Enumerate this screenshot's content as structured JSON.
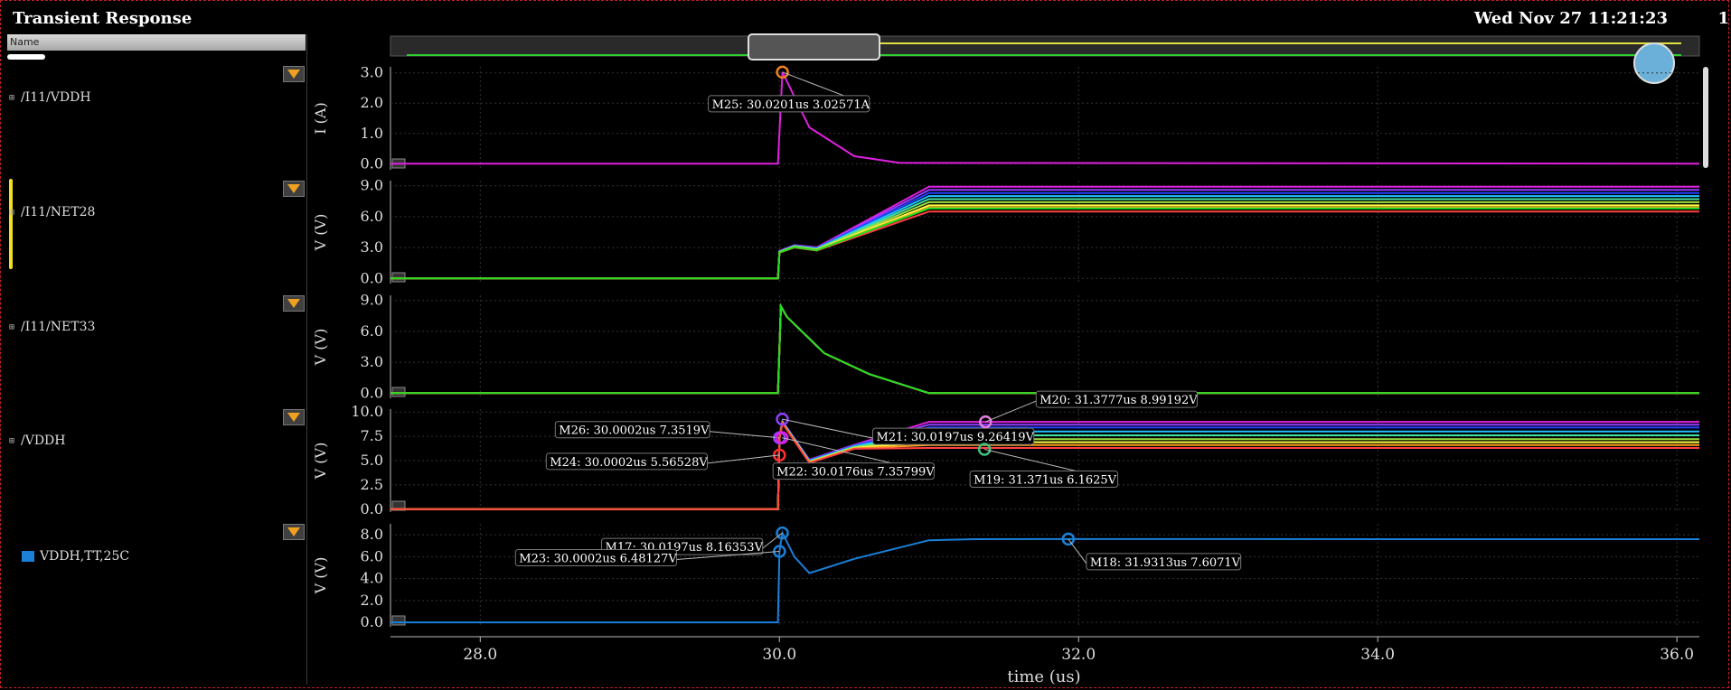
{
  "window": {
    "title": "Transient Response",
    "datetime": "Wed Nov 27 11:21:23",
    "corner_text": "1"
  },
  "left_panel": {
    "column_header": "Name",
    "signals": [
      {
        "label": "/I11/VDDH"
      },
      {
        "label": "/I11/NET28"
      },
      {
        "label": "/I11/NET33"
      },
      {
        "label": "/VDDH"
      }
    ],
    "legend_entry": {
      "label": "VDDH,TT,25C",
      "color": "#1a80d8"
    }
  },
  "chart_data": {
    "type": "line",
    "xlabel": "time (us)",
    "x_ticks": [
      "28.0",
      "30.0",
      "32.0",
      "34.0",
      "36.0"
    ],
    "xlim": [
      27.4,
      36.15
    ],
    "panels": [
      {
        "ylabel": "I (A)",
        "ylim": [
          -0.2,
          3.2
        ],
        "yticks": [
          "0.0",
          "1.0",
          "2.0",
          "3.0"
        ],
        "series": [
          {
            "color": "#e020e0",
            "x": [
              27.4,
              29.99,
              30.02,
              30.2,
              30.5,
              30.8,
              36.15
            ],
            "y": [
              0,
              0,
              3.02571,
              1.2,
              0.25,
              0.03,
              0
            ]
          }
        ]
      },
      {
        "ylabel": "V (V)",
        "ylim": [
          -0.5,
          9.5
        ],
        "yticks": [
          "0.0",
          "3.0",
          "6.0",
          "9.0"
        ],
        "families": {
          "x": [
            27.4,
            29.99,
            30.0,
            30.1,
            30.25,
            31.0,
            32.0,
            33.0,
            36.15
          ],
          "shape": [
            0,
            0,
            2.5,
            3.0,
            2.7,
            5.2,
            6.2,
            6.5,
            6.5
          ]
        },
        "series": [
          {
            "color": "#e020e0",
            "y_end": 8.9
          },
          {
            "color": "#9040ff",
            "y_end": 8.6
          },
          {
            "color": "#2040ff",
            "y_end": 8.3
          },
          {
            "color": "#20c0ff",
            "y_end": 8.0
          },
          {
            "color": "#40e0a0",
            "y_end": 7.7
          },
          {
            "color": "#a0e040",
            "y_end": 7.4
          },
          {
            "color": "#ffff40",
            "y_end": 7.1
          },
          {
            "color": "#ffa020",
            "y_end": 6.9
          },
          {
            "color": "#ff4040",
            "y_end": 6.5
          },
          {
            "color": "#20e020",
            "y_end": 6.8
          }
        ]
      },
      {
        "ylabel": "V (V)",
        "ylim": [
          -0.5,
          9.5
        ],
        "yticks": [
          "0.0",
          "3.0",
          "6.0",
          "9.0"
        ],
        "families": {
          "x": [
            27.4,
            29.99,
            30.01,
            30.05,
            30.3,
            30.6,
            31.0,
            31.5,
            32.0,
            36.15
          ],
          "shape": [
            0,
            0,
            8.5,
            7.5,
            4.0,
            2.0,
            1.0,
            0.3,
            0,
            0
          ]
        },
        "series": [
          {
            "color": "#e020e0",
            "y_end": 0
          },
          {
            "color": "#9040ff",
            "y_end": 0
          },
          {
            "color": "#20c0ff",
            "y_end": 0
          },
          {
            "color": "#40e0a0",
            "y_end": 0
          },
          {
            "color": "#ffff40",
            "y_end": 0
          },
          {
            "color": "#ffa020",
            "y_end": 0
          },
          {
            "color": "#ff4040",
            "y_end": 0
          },
          {
            "color": "#20e020",
            "y_end": 0
          }
        ]
      },
      {
        "ylabel": "V (V)",
        "ylim": [
          -0.3,
          10.3
        ],
        "yticks": [
          "0.0",
          "2.5",
          "5.0",
          "7.5",
          "10.0"
        ],
        "families": {
          "x": [
            27.4,
            29.99,
            30.0,
            30.02,
            30.2,
            30.5,
            31.0,
            31.4,
            32.0,
            36.15
          ],
          "shape": [
            0,
            0,
            7.35,
            9.0,
            5.0,
            6.5,
            7.8,
            8.4,
            8.2,
            8.2
          ]
        },
        "series": [
          {
            "color": "#e020e0",
            "y_end": 8.99
          },
          {
            "color": "#9040ff",
            "y_end": 8.7
          },
          {
            "color": "#2040ff",
            "y_end": 8.4
          },
          {
            "color": "#20c0ff",
            "y_end": 8.0
          },
          {
            "color": "#40e0a0",
            "y_end": 7.6
          },
          {
            "color": "#a0e040",
            "y_end": 7.2
          },
          {
            "color": "#ffff40",
            "y_end": 6.9
          },
          {
            "color": "#ffa020",
            "y_end": 6.6
          },
          {
            "color": "#ff4040",
            "y_end": 6.3
          }
        ]
      },
      {
        "ylabel": "V (V)",
        "ylim": [
          -0.4,
          9.0
        ],
        "yticks": [
          "0.0",
          "2.0",
          "4.0",
          "6.0",
          "8.0"
        ],
        "series": [
          {
            "color": "#1a80d8",
            "x": [
              27.4,
              29.99,
              30.0,
              30.02,
              30.1,
              30.2,
              30.5,
              31.0,
              31.3,
              31.93,
              36.15
            ],
            "y": [
              0,
              0,
              6.48,
              8.16,
              6.0,
              4.5,
              5.8,
              7.5,
              7.6,
              7.6071,
              7.6
            ]
          }
        ]
      }
    ],
    "markers": [
      {
        "panel": 0,
        "x": 30.0201,
        "y": 3.02571,
        "label": "M25: 30.0201us 3.02571A",
        "color": "#f08020"
      },
      {
        "panel": 3,
        "x": 30.0002,
        "y": 7.3519,
        "label": "M26: 30.0002us 7.3519V",
        "color": "#9040ff"
      },
      {
        "panel": 3,
        "x": 30.0002,
        "y": 5.56528,
        "label": "M24: 30.0002us 5.56528V",
        "color": "#ff3030"
      },
      {
        "panel": 3,
        "x": 30.0197,
        "y": 9.26419,
        "label": "M21: 30.0197us 9.26419V",
        "color": "#9040ff"
      },
      {
        "panel": 3,
        "x": 30.0176,
        "y": 7.35799,
        "label": "M22: 30.0176us 7.35799V",
        "color": "#e020e0"
      },
      {
        "panel": 3,
        "x": 31.3777,
        "y": 8.99192,
        "label": "M20: 31.3777us 8.99192V",
        "color": "#e080e0"
      },
      {
        "panel": 3,
        "x": 31.371,
        "y": 6.1625,
        "label": "M19: 31.371us 6.1625V",
        "color": "#40c080"
      },
      {
        "panel": 4,
        "x": 30.0197,
        "y": 8.16353,
        "label": "M17: 30.0197us 8.16353V",
        "color": "#1a80d8"
      },
      {
        "panel": 4,
        "x": 30.0002,
        "y": 6.48127,
        "label": "M23: 30.0002us 6.48127V",
        "color": "#1a80d8"
      },
      {
        "panel": 4,
        "x": 31.9313,
        "y": 7.6071,
        "label": "M18: 31.9313us 7.6071V",
        "color": "#1a80d8"
      }
    ]
  }
}
